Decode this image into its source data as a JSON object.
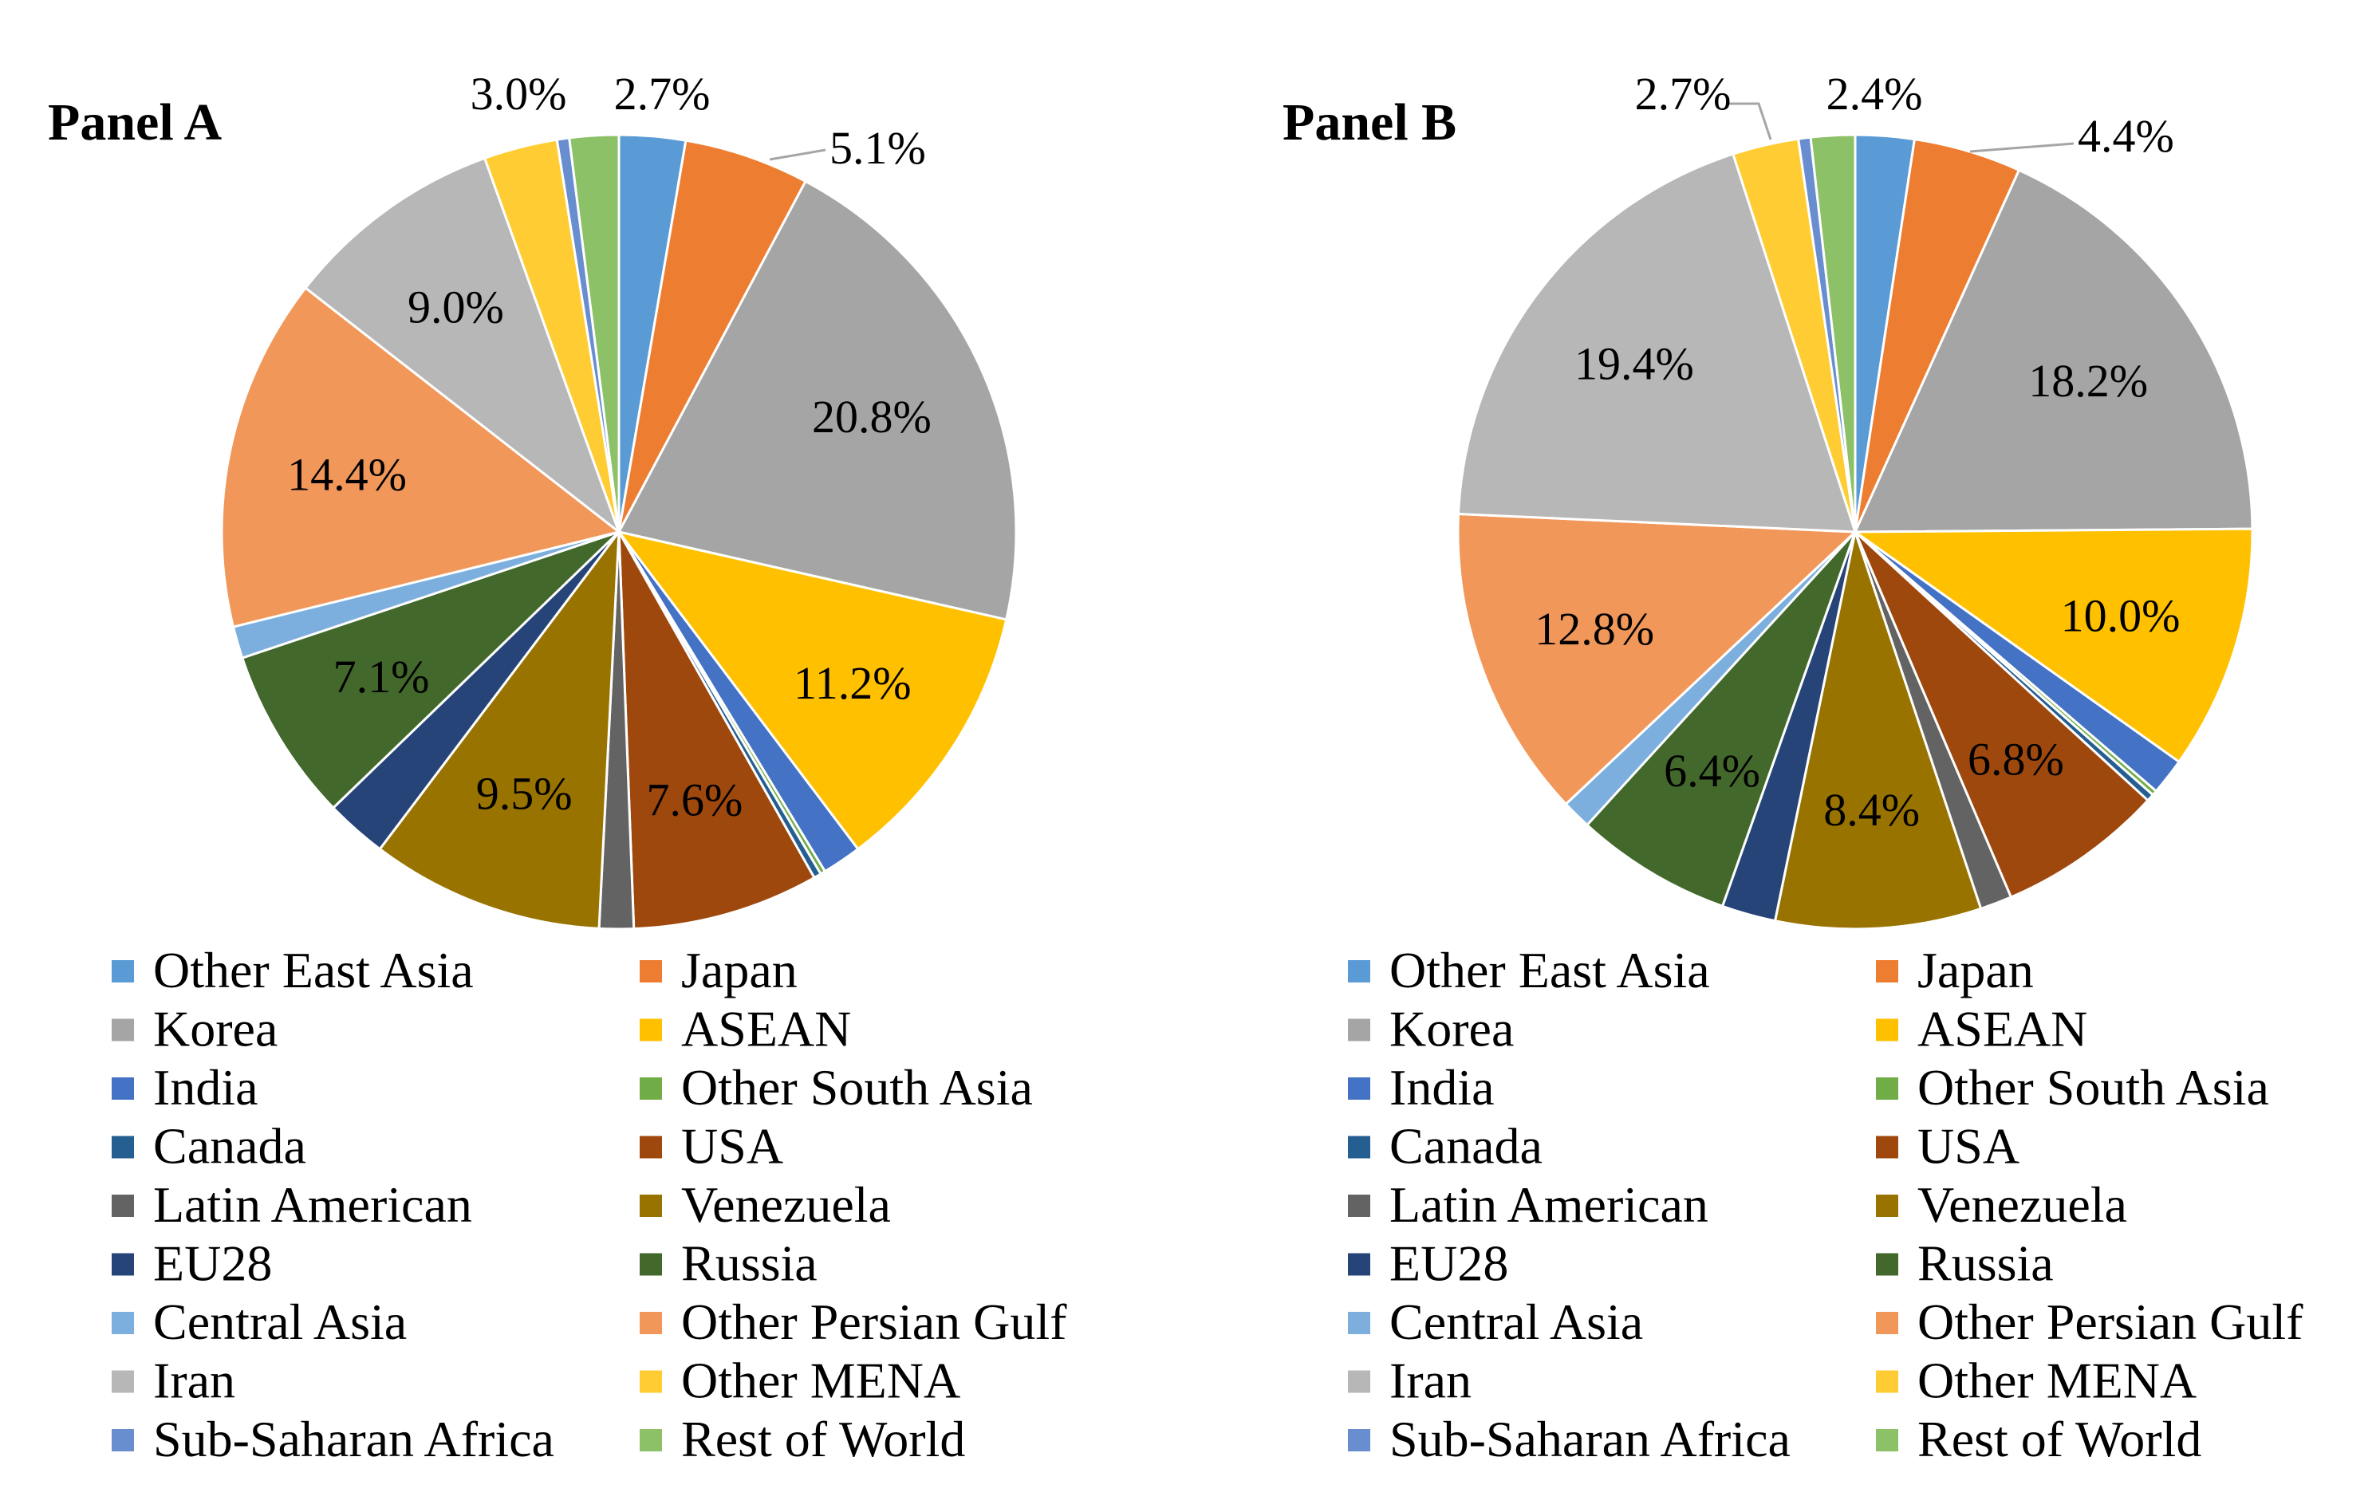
{
  "colors": {
    "Other East Asia": "#5B9BD5",
    "Japan": "#ED7D31",
    "Korea": "#A5A5A5",
    "ASEAN": "#FFC000",
    "India": "#4472C4",
    "Other South Asia": "#70AD47",
    "Canada": "#255E91",
    "USA": "#9E480E",
    "Latin American": "#636363",
    "Venezuela": "#997300",
    "EU28": "#264478",
    "Russia": "#43682B",
    "Central Asia": "#7CAFDD",
    "Other Persian Gulf": "#F1975A",
    "Iran": "#B7B7B7",
    "Other MENA": "#FFCD33",
    "Sub-Saharan Africa": "#698ED0",
    "Rest of World": "#8CC168"
  },
  "chart_data": [
    {
      "type": "pie",
      "title": "Panel A",
      "categories": [
        "Other East Asia",
        "Japan",
        "Korea",
        "ASEAN",
        "India",
        "Other South Asia",
        "Canada",
        "USA",
        "Latin American",
        "Venezuela",
        "EU28",
        "Russia",
        "Central Asia",
        "Other Persian Gulf",
        "Iran",
        "Other MENA",
        "Sub-Saharan Africa",
        "Rest of World"
      ],
      "values": [
        2.7,
        5.1,
        20.8,
        11.2,
        1.6,
        0.2,
        0.3,
        7.6,
        1.4,
        9.5,
        2.5,
        7.1,
        1.3,
        14.4,
        9.0,
        3.0,
        0.5,
        2.0
      ],
      "data_labels": [
        {
          "category": "Other East Asia",
          "text": "2.7%"
        },
        {
          "category": "Japan",
          "text": "5.1%"
        },
        {
          "category": "Korea",
          "text": "20.8%"
        },
        {
          "category": "ASEAN",
          "text": "11.2%"
        },
        {
          "category": "USA",
          "text": "7.6%"
        },
        {
          "category": "Venezuela",
          "text": "9.5%"
        },
        {
          "category": "Russia",
          "text": "7.1%"
        },
        {
          "category": "Other Persian Gulf",
          "text": "14.4%"
        },
        {
          "category": "Iran",
          "text": "9.0%"
        },
        {
          "category": "Other MENA",
          "text": "3.0%"
        }
      ],
      "legend": "bottom"
    },
    {
      "type": "pie",
      "title": "Panel B",
      "categories": [
        "Other East Asia",
        "Japan",
        "Korea",
        "ASEAN",
        "India",
        "Other South Asia",
        "Canada",
        "USA",
        "Latin American",
        "Venezuela",
        "EU28",
        "Russia",
        "Central Asia",
        "Other Persian Gulf",
        "Iran",
        "Other MENA",
        "Sub-Saharan Africa",
        "Rest of World"
      ],
      "values": [
        2.4,
        4.4,
        18.2,
        10.0,
        1.5,
        0.2,
        0.3,
        6.8,
        1.3,
        8.4,
        2.2,
        6.4,
        1.2,
        12.8,
        19.4,
        2.7,
        0.5,
        1.8
      ],
      "data_labels": [
        {
          "category": "Other East Asia",
          "text": "2.4%"
        },
        {
          "category": "Japan",
          "text": "4.4%"
        },
        {
          "category": "Korea",
          "text": "18.2%"
        },
        {
          "category": "ASEAN",
          "text": "10.0%"
        },
        {
          "category": "USA",
          "text": "6.8%"
        },
        {
          "category": "Venezuela",
          "text": "8.4%"
        },
        {
          "category": "Russia",
          "text": "6.4%"
        },
        {
          "category": "Other Persian Gulf",
          "text": "12.8%"
        },
        {
          "category": "Iran",
          "text": "19.4%"
        },
        {
          "category": "Other MENA",
          "text": "2.7%"
        }
      ],
      "legend": "bottom"
    }
  ]
}
